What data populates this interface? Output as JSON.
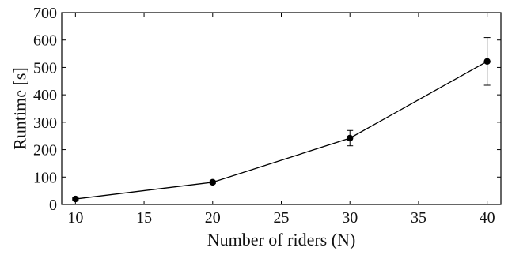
{
  "chart_data": {
    "type": "line",
    "xlabel": "Number of riders (N)",
    "ylabel": "Runtime [s]",
    "xlim": [
      9,
      41
    ],
    "ylim": [
      0,
      700
    ],
    "xticks": [
      10,
      15,
      20,
      25,
      30,
      35,
      40
    ],
    "yticks": [
      0,
      100,
      200,
      300,
      400,
      500,
      600,
      700
    ],
    "grid": false,
    "series": [
      {
        "x": [
          10,
          20,
          30,
          40
        ],
        "y": [
          20,
          81,
          242,
          522
        ],
        "error": [
          5,
          5,
          28,
          87
        ],
        "color": "#000000",
        "marker": "circle"
      }
    ]
  }
}
